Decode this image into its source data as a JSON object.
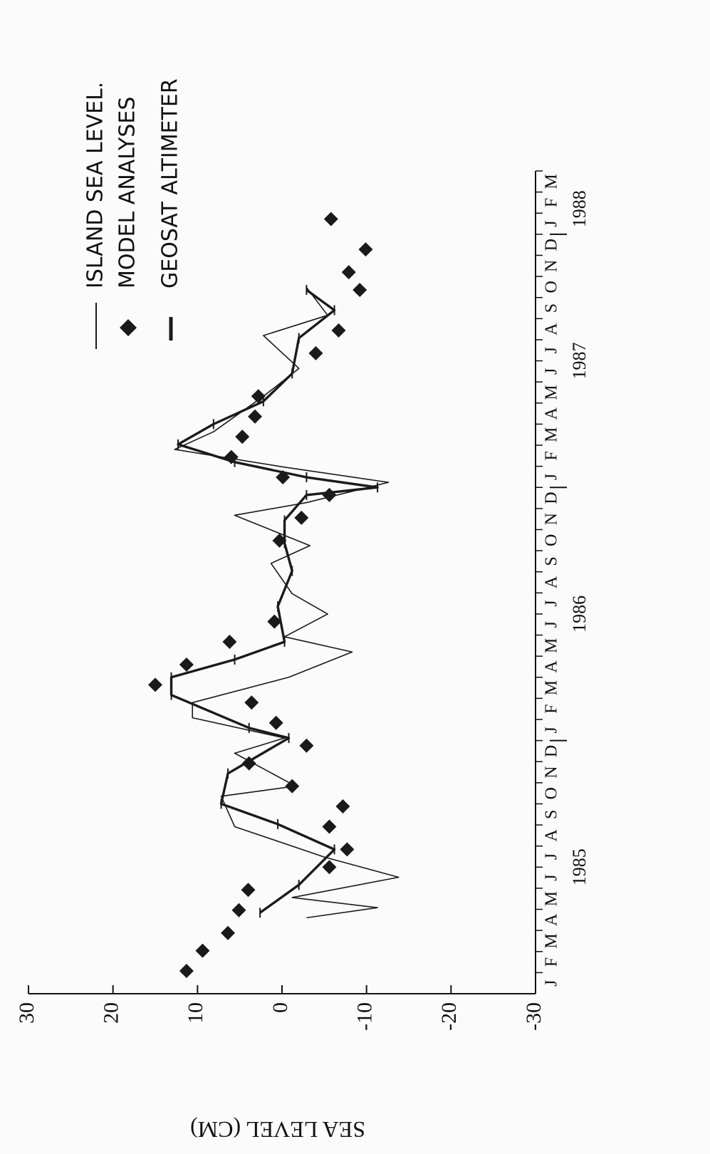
{
  "chart_data": {
    "type": "line",
    "y_label": "SEA LEVEL (CM)",
    "ylim": [
      -30,
      30
    ],
    "yticks": [
      -30,
      -20,
      -10,
      0,
      10,
      20,
      30
    ],
    "xlim": [
      1985,
      1988.25
    ],
    "xticks": [
      {
        "value": 1985.5,
        "label": "1985"
      },
      {
        "value": 1986.5,
        "label": "1986"
      },
      {
        "value": 1987.5,
        "label": "1987"
      },
      {
        "value": 1988.1,
        "label": "1988"
      }
    ],
    "months": [
      "J",
      "F",
      "M",
      "A",
      "M",
      "J",
      "J",
      "A",
      "S",
      "O",
      "N",
      "D",
      "J",
      "F",
      "M",
      "A",
      "M",
      "J",
      "J",
      "A",
      "S",
      "O",
      "N",
      "D",
      "J",
      "F",
      "M",
      "A",
      "M",
      "J",
      "J",
      "A",
      "S",
      "O",
      "N",
      "D",
      "J",
      "F",
      "M"
    ],
    "series": [
      {
        "name": "ISLAND SEA LEVEL.",
        "color": "#1a1a1a",
        "style": "line",
        "x": [
          1985.3,
          1985.34,
          1985.38,
          1985.46,
          1985.54,
          1985.66,
          1985.78,
          1985.82,
          1985.95,
          1986.01,
          1986.09,
          1986.15,
          1986.25,
          1986.35,
          1986.41,
          1986.5,
          1986.58,
          1986.7,
          1986.77,
          1986.89,
          1986.94,
          1987.02,
          1987.08,
          1987.15,
          1987.22,
          1987.36,
          1987.47,
          1987.6,
          1987.68,
          1987.79
        ],
        "values": [
          -2.9,
          -11.3,
          -1.2,
          -13.8,
          -5.0,
          5.6,
          7.2,
          -1.6,
          5.6,
          -0.3,
          10.6,
          10.6,
          -0.8,
          -8.3,
          -0.3,
          -5.4,
          -1.2,
          1.3,
          -3.3,
          5.6,
          -2.9,
          -12.6,
          -0.3,
          12.7,
          8.1,
          2.2,
          -2.0,
          2.2,
          -5.4,
          -2.9
        ]
      },
      {
        "name": "MODEL ANALYSES",
        "color": "#1a1a1a",
        "style": "diamond",
        "x": [
          1985.09,
          1985.17,
          1985.24,
          1985.33,
          1985.41,
          1985.5,
          1985.57,
          1985.66,
          1985.74,
          1985.82,
          1985.91,
          1985.98,
          1986.07,
          1986.15,
          1986.22,
          1986.3,
          1986.39,
          1986.47,
          1986.79,
          1986.88,
          1986.97,
          1987.04,
          1987.12,
          1987.2,
          1987.28,
          1987.36,
          1987.53,
          1987.62,
          1987.78,
          1987.85,
          1987.94,
          1988.06
        ],
        "values": [
          11.3,
          9.4,
          6.4,
          5.1,
          4.0,
          -5.6,
          -7.7,
          -5.6,
          -7.2,
          -1.2,
          3.9,
          -2.9,
          0.7,
          3.6,
          15.0,
          11.3,
          6.2,
          0.9,
          0.3,
          -2.3,
          -5.6,
          -0.1,
          6.0,
          4.7,
          3.2,
          2.8,
          -4.0,
          -6.7,
          -9.2,
          -7.9,
          -9.9,
          -5.8
        ]
      },
      {
        "name": "GEOSAT ALTIMETER",
        "color": "#1a1a1a",
        "style": "ticked-line",
        "x": [
          1985.32,
          1985.43,
          1985.57,
          1985.67,
          1985.75,
          1985.87,
          1986.01,
          1986.05,
          1986.18,
          1986.25,
          1986.32,
          1986.39,
          1986.53,
          1986.67,
          1986.78,
          1986.87,
          1986.97,
          1987.0,
          1987.04,
          1987.1,
          1987.17,
          1987.25,
          1987.34,
          1987.45,
          1987.59,
          1987.7,
          1987.78
        ],
        "values": [
          2.6,
          -2.0,
          -6.2,
          0.5,
          7.2,
          6.4,
          -0.8,
          3.9,
          13.1,
          13.1,
          5.6,
          -0.3,
          0.5,
          -1.2,
          -0.3,
          -0.3,
          -2.9,
          -11.3,
          -2.9,
          5.6,
          12.3,
          8.1,
          2.2,
          -1.2,
          -2.0,
          -6.2,
          -2.9
        ]
      }
    ]
  }
}
